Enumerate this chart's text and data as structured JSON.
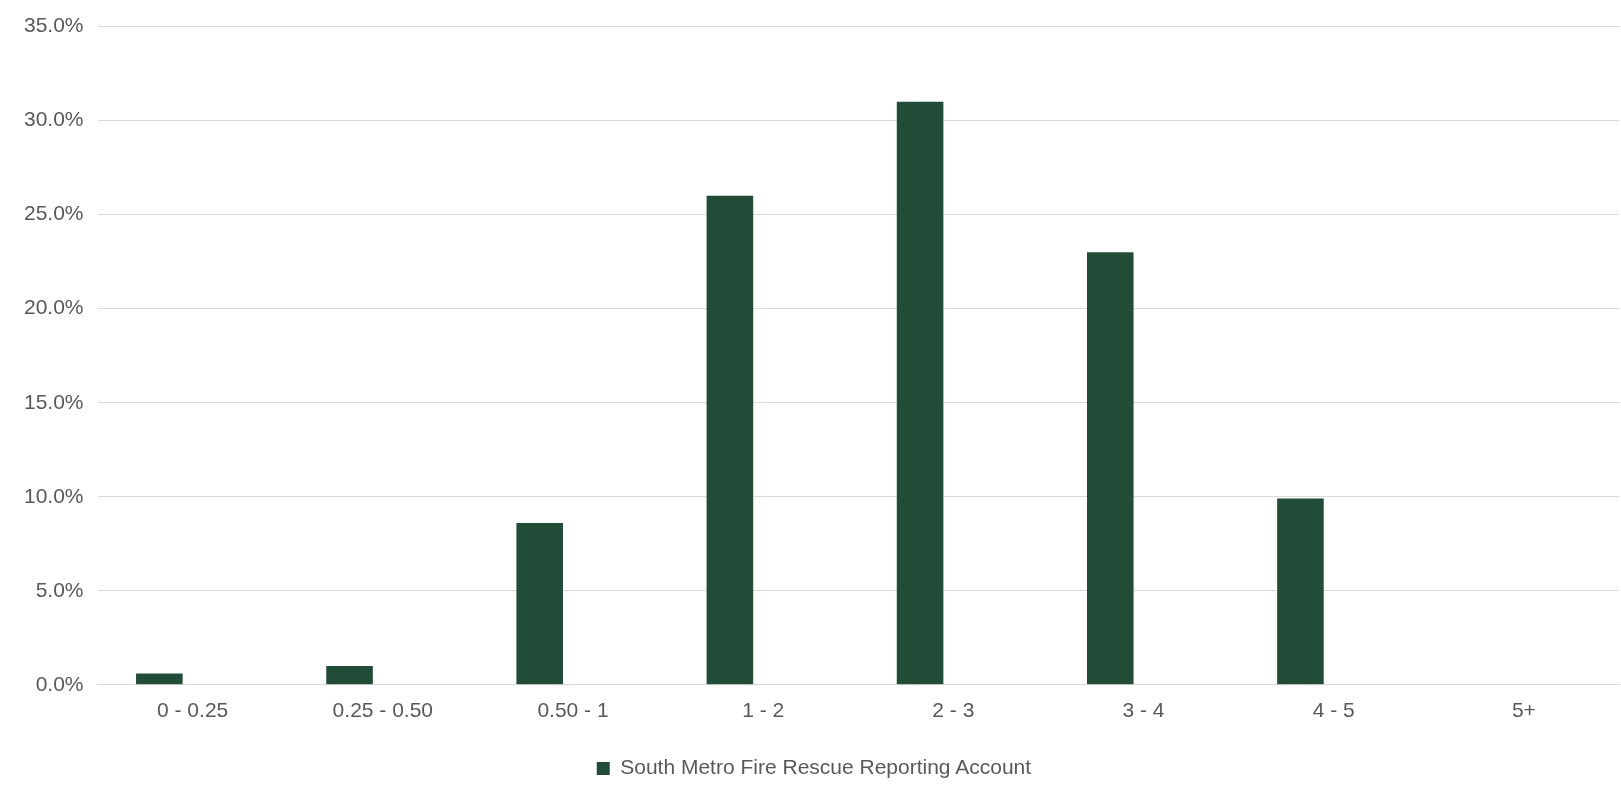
{
  "chart_data": {
    "type": "bar",
    "categories": [
      "0 - 0.25",
      "0.25 - 0.50",
      "0.50 - 1",
      "1 - 2",
      "2 - 3",
      "3 - 4",
      "4 - 5",
      "5+"
    ],
    "series": [
      {
        "name": "South Metro Fire Rescue Reporting Account",
        "color": "#214c38",
        "values": [
          0.6,
          1.0,
          8.6,
          26.0,
          31.0,
          23.0,
          9.9,
          0
        ]
      }
    ],
    "ylim": [
      0,
      35
    ],
    "yticks": [
      {
        "value": 0,
        "label": "0.0%"
      },
      {
        "value": 5,
        "label": "5.0%"
      },
      {
        "value": 10,
        "label": "10.0%"
      },
      {
        "value": 15,
        "label": "15.0%"
      },
      {
        "value": 20,
        "label": "20.0%"
      },
      {
        "value": 25,
        "label": "25.0%"
      },
      {
        "value": 30,
        "label": "30.0%"
      },
      {
        "value": 35,
        "label": "35.0%"
      }
    ],
    "grid": "y",
    "legend": "bottom"
  }
}
